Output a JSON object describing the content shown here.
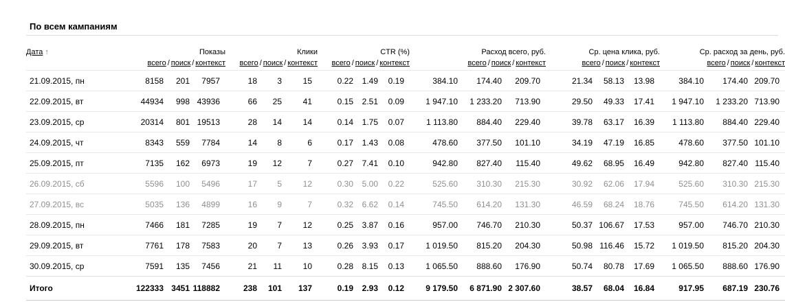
{
  "title": "По всем кампаниям",
  "header": {
    "date_label": "Дата",
    "sort_arrow": "↑",
    "sep": "/",
    "groups": [
      {
        "title": "Показы",
        "subs": [
          "всего",
          "поиск",
          "контекст"
        ]
      },
      {
        "title": "Клики",
        "subs": [
          "всего",
          "поиск",
          "контекст"
        ]
      },
      {
        "title": "CTR (%)",
        "subs": [
          "всего",
          "поиск",
          "контекст"
        ]
      },
      {
        "title": "Расход всего, руб.",
        "subs": [
          "всего",
          "поиск",
          "контекст"
        ]
      },
      {
        "title": "Ср. цена клика, руб.",
        "subs": [
          "всего",
          "поиск",
          "контекст"
        ]
      },
      {
        "title": "Ср. расход за день, руб.",
        "subs": [
          "всего",
          "поиск",
          "контекст"
        ]
      }
    ]
  },
  "rows": [
    {
      "date": "21.09.2015, пн",
      "weekend": false,
      "values": [
        "8158",
        "201",
        "7957",
        "18",
        "3",
        "15",
        "0.22",
        "1.49",
        "0.19",
        "384.10",
        "174.40",
        "209.70",
        "21.34",
        "58.13",
        "13.98",
        "384.10",
        "174.40",
        "209.70"
      ]
    },
    {
      "date": "22.09.2015, вт",
      "weekend": false,
      "values": [
        "44934",
        "998",
        "43936",
        "66",
        "25",
        "41",
        "0.15",
        "2.51",
        "0.09",
        "1 947.10",
        "1 233.20",
        "713.90",
        "29.50",
        "49.33",
        "17.41",
        "1 947.10",
        "1 233.20",
        "713.90"
      ]
    },
    {
      "date": "23.09.2015, ср",
      "weekend": false,
      "values": [
        "20314",
        "801",
        "19513",
        "28",
        "14",
        "14",
        "0.14",
        "1.75",
        "0.07",
        "1 113.80",
        "884.40",
        "229.40",
        "39.78",
        "63.17",
        "16.39",
        "1 113.80",
        "884.40",
        "229.40"
      ]
    },
    {
      "date": "24.09.2015, чт",
      "weekend": false,
      "values": [
        "8343",
        "559",
        "7784",
        "14",
        "8",
        "6",
        "0.17",
        "1.43",
        "0.08",
        "478.60",
        "377.50",
        "101.10",
        "34.19",
        "47.19",
        "16.85",
        "478.60",
        "377.50",
        "101.10"
      ]
    },
    {
      "date": "25.09.2015, пт",
      "weekend": false,
      "values": [
        "7135",
        "162",
        "6973",
        "19",
        "12",
        "7",
        "0.27",
        "7.41",
        "0.10",
        "942.80",
        "827.40",
        "115.40",
        "49.62",
        "68.95",
        "16.49",
        "942.80",
        "827.40",
        "115.40"
      ]
    },
    {
      "date": "26.09.2015, сб",
      "weekend": true,
      "values": [
        "5596",
        "100",
        "5496",
        "17",
        "5",
        "12",
        "0.30",
        "5.00",
        "0.22",
        "525.60",
        "310.30",
        "215.30",
        "30.92",
        "62.06",
        "17.94",
        "525.60",
        "310.30",
        "215.30"
      ]
    },
    {
      "date": "27.09.2015, вс",
      "weekend": true,
      "values": [
        "5035",
        "136",
        "4899",
        "16",
        "9",
        "7",
        "0.32",
        "6.62",
        "0.14",
        "745.50",
        "614.20",
        "131.30",
        "46.59",
        "68.24",
        "18.76",
        "745.50",
        "614.20",
        "131.30"
      ]
    },
    {
      "date": "28.09.2015, пн",
      "weekend": false,
      "values": [
        "7466",
        "181",
        "7285",
        "19",
        "7",
        "12",
        "0.25",
        "3.87",
        "0.16",
        "957.00",
        "746.70",
        "210.30",
        "50.37",
        "106.67",
        "17.53",
        "957.00",
        "746.70",
        "210.30"
      ]
    },
    {
      "date": "29.09.2015, вт",
      "weekend": false,
      "values": [
        "7761",
        "178",
        "7583",
        "20",
        "7",
        "13",
        "0.26",
        "3.93",
        "0.17",
        "1 019.50",
        "815.20",
        "204.30",
        "50.98",
        "116.46",
        "15.72",
        "1 019.50",
        "815.20",
        "204.30"
      ]
    },
    {
      "date": "30.09.2015, ср",
      "weekend": false,
      "values": [
        "7591",
        "135",
        "7456",
        "21",
        "11",
        "10",
        "0.28",
        "8.15",
        "0.13",
        "1 065.50",
        "888.60",
        "176.90",
        "50.74",
        "80.78",
        "17.69",
        "1 065.50",
        "888.60",
        "176.90"
      ]
    }
  ],
  "total": {
    "label": "Итого",
    "values": [
      "122333",
      "3451",
      "118882",
      "238",
      "101",
      "137",
      "0.19",
      "2.93",
      "0.12",
      "9 179.50",
      "6 871.90",
      "2 307.60",
      "38.57",
      "68.04",
      "16.84",
      "917.95",
      "687.19",
      "230.76"
    ]
  }
}
